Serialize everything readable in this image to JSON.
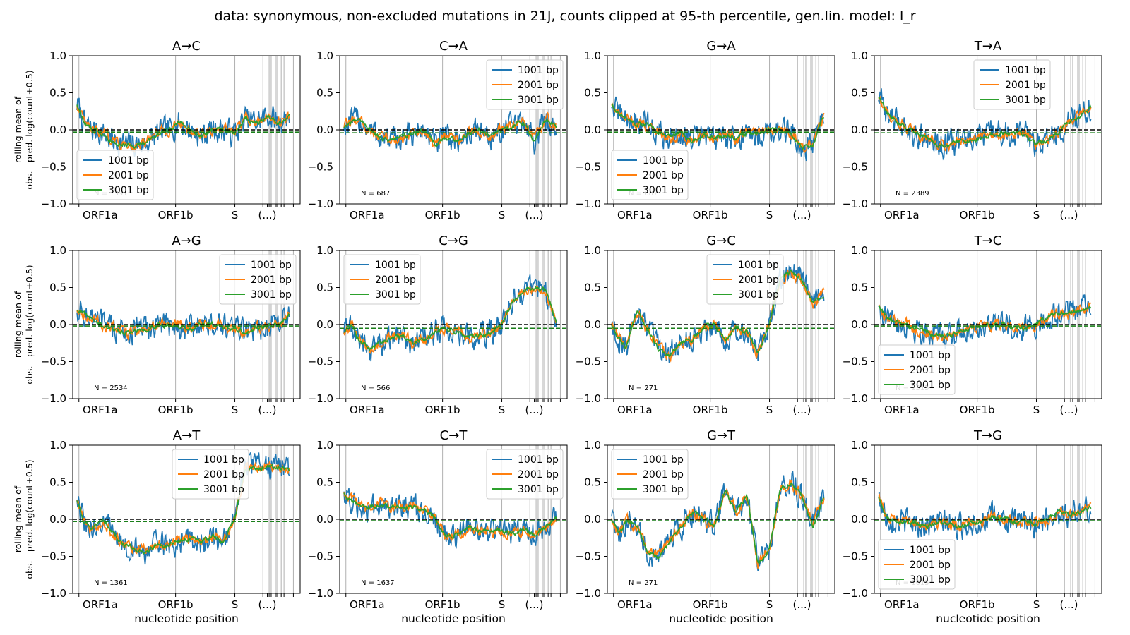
{
  "suptitle": "data: synonymous, non-excluded mutations in 21J, counts clipped at 95-th percentile, gen.lin. model: l_r",
  "axis": {
    "ylabel_line1": "rolling mean of",
    "ylabel_line2": "obs. - pred. log(count+0.5)",
    "xlabel": "nucleotide position",
    "yticks": [
      "1.0",
      "0.5",
      "0.0",
      "−0.5",
      "−1.0"
    ],
    "ylim": [
      -1.0,
      1.0
    ],
    "xlim": [
      0,
      29903
    ],
    "xtick_labels": [
      "ORF1a",
      "ORF1b",
      "S",
      "(...)"
    ],
    "xtick_positions": [
      266,
      13468,
      21563,
      26000
    ]
  },
  "gene_boundaries": [
    266,
    13468,
    21563,
    25393,
    26245,
    26523,
    27202,
    27394,
    27894,
    28274,
    29558
  ],
  "colors": {
    "w1001": "#1f77b4",
    "w2001": "#ff7f0e",
    "w3001": "#2ca02c",
    "zero_line": "#000000",
    "mean_line": "#1a7f1a",
    "gene_line": "#b0b0b0"
  },
  "chart_data": [
    {
      "type": "line",
      "title": "A→C",
      "n": "N = 1391",
      "legend": "lower-left",
      "mean_offset": -0.03,
      "series": [
        {
          "name": "1001 bp"
        },
        {
          "name": "2001 bp"
        },
        {
          "name": "3001 bp"
        }
      ],
      "x": [
        0,
        1000,
        2000,
        3500,
        5000,
        6500,
        8000,
        9500,
        11000,
        12500,
        14000,
        15500,
        17000,
        18500,
        20000,
        21500,
        23000,
        24500,
        26000,
        27500,
        29000
      ],
      "y": [
        0.35,
        0.08,
        0.0,
        -0.05,
        -0.15,
        -0.2,
        -0.2,
        -0.18,
        -0.05,
        0.0,
        0.1,
        0.0,
        -0.08,
        0.0,
        0.0,
        -0.05,
        0.15,
        0.1,
        0.2,
        0.1,
        0.18
      ]
    },
    {
      "type": "line",
      "title": "C→A",
      "n": "N = 687",
      "legend": "upper-right",
      "mean_offset": -0.04,
      "series": [
        {
          "name": "1001 bp"
        },
        {
          "name": "2001 bp"
        },
        {
          "name": "3001 bp"
        }
      ],
      "x": [
        0,
        1000,
        2000,
        3500,
        5000,
        6500,
        8000,
        9500,
        11000,
        12500,
        14000,
        15500,
        17000,
        18500,
        20000,
        21500,
        23000,
        24500,
        26000,
        27500,
        29000
      ],
      "y": [
        0.05,
        0.1,
        0.15,
        0.0,
        -0.1,
        -0.15,
        -0.1,
        -0.05,
        0.0,
        -0.2,
        -0.1,
        -0.15,
        -0.05,
        0.0,
        -0.1,
        0.0,
        0.05,
        0.1,
        -0.15,
        0.15,
        0.05
      ]
    },
    {
      "type": "line",
      "title": "G→A",
      "n": "N = 687",
      "legend": "lower-left",
      "mean_offset": -0.03,
      "series": [
        {
          "name": "1001 bp"
        },
        {
          "name": "2001 bp"
        },
        {
          "name": "3001 bp"
        }
      ],
      "x": [
        0,
        1000,
        2000,
        3500,
        5000,
        6500,
        8000,
        9500,
        11000,
        12500,
        14000,
        15500,
        17000,
        18500,
        20000,
        21500,
        23000,
        24500,
        26000,
        27500,
        29000
      ],
      "y": [
        0.35,
        0.2,
        0.15,
        0.1,
        0.05,
        -0.05,
        -0.1,
        -0.05,
        -0.15,
        -0.1,
        -0.1,
        -0.1,
        -0.1,
        -0.05,
        -0.05,
        0.0,
        0.0,
        -0.05,
        -0.25,
        -0.2,
        0.2
      ]
    },
    {
      "type": "line",
      "title": "T→A",
      "n": "N = 2389",
      "legend": "upper-center",
      "mean_offset": -0.04,
      "series": [
        {
          "name": "1001 bp"
        },
        {
          "name": "2001 bp"
        },
        {
          "name": "3001 bp"
        }
      ],
      "x": [
        0,
        1000,
        2000,
        3500,
        5000,
        6500,
        8000,
        9500,
        11000,
        12500,
        14000,
        15500,
        17000,
        18500,
        20000,
        21500,
        23000,
        24500,
        26000,
        27500,
        29000
      ],
      "y": [
        0.45,
        0.25,
        0.15,
        0.05,
        -0.05,
        -0.1,
        -0.2,
        -0.2,
        -0.15,
        -0.15,
        -0.1,
        -0.05,
        -0.05,
        -0.05,
        -0.05,
        -0.2,
        -0.15,
        -0.05,
        0.1,
        0.2,
        0.3
      ]
    },
    {
      "type": "line",
      "title": "A→G",
      "n": "N = 2534",
      "legend": "upper-right",
      "mean_offset": -0.02,
      "series": [
        {
          "name": "1001 bp"
        },
        {
          "name": "2001 bp"
        },
        {
          "name": "3001 bp"
        }
      ],
      "x": [
        0,
        1000,
        2000,
        3500,
        5000,
        6500,
        8000,
        9500,
        11000,
        12500,
        14000,
        15500,
        17000,
        18500,
        20000,
        21500,
        23000,
        24500,
        26000,
        27500,
        29000
      ],
      "y": [
        0.2,
        0.15,
        0.08,
        0.0,
        -0.05,
        -0.12,
        -0.08,
        -0.05,
        0.0,
        0.0,
        -0.02,
        -0.05,
        0.0,
        0.0,
        -0.05,
        -0.05,
        -0.1,
        -0.05,
        -0.03,
        0.0,
        0.15
      ]
    },
    {
      "type": "line",
      "title": "C→G",
      "n": "N = 566",
      "legend": "upper-left",
      "mean_offset": -0.05,
      "series": [
        {
          "name": "1001 bp"
        },
        {
          "name": "2001 bp"
        },
        {
          "name": "3001 bp"
        }
      ],
      "x": [
        0,
        1000,
        2000,
        3500,
        5000,
        6500,
        8000,
        9500,
        11000,
        12500,
        14000,
        15500,
        17000,
        18500,
        20000,
        21500,
        23000,
        24500,
        26000,
        27500,
        29000
      ],
      "y": [
        -0.1,
        0.0,
        -0.2,
        -0.35,
        -0.25,
        -0.2,
        -0.15,
        -0.25,
        -0.2,
        -0.1,
        -0.05,
        -0.1,
        -0.2,
        -0.15,
        -0.1,
        0.0,
        0.3,
        0.45,
        0.5,
        0.45,
        0.05
      ]
    },
    {
      "type": "line",
      "title": "G→C",
      "n": "N = 271",
      "legend": "upper-center",
      "mean_offset": -0.05,
      "series": [
        {
          "name": "1001 bp"
        },
        {
          "name": "2001 bp"
        },
        {
          "name": "3001 bp"
        }
      ],
      "x": [
        0,
        1000,
        2000,
        3500,
        5000,
        6500,
        8000,
        9500,
        11000,
        12500,
        14000,
        15500,
        17000,
        18500,
        20000,
        21500,
        23000,
        24500,
        26000,
        27500,
        29000
      ],
      "y": [
        0.0,
        -0.2,
        -0.3,
        0.2,
        -0.1,
        -0.35,
        -0.4,
        -0.25,
        -0.2,
        -0.05,
        0.0,
        -0.2,
        -0.05,
        -0.1,
        -0.4,
        0.0,
        0.6,
        0.7,
        0.6,
        0.3,
        0.4
      ]
    },
    {
      "type": "line",
      "title": "T→C",
      "n": "N = 2315",
      "legend": "lower-left",
      "mean_offset": -0.02,
      "series": [
        {
          "name": "1001 bp"
        },
        {
          "name": "2001 bp"
        },
        {
          "name": "3001 bp"
        }
      ],
      "x": [
        0,
        1000,
        2000,
        3500,
        5000,
        6500,
        8000,
        9500,
        11000,
        12500,
        14000,
        15500,
        17000,
        18500,
        20000,
        21500,
        23000,
        24500,
        26000,
        27500,
        29000
      ],
      "y": [
        0.25,
        0.1,
        0.05,
        0.0,
        -0.05,
        -0.1,
        -0.15,
        -0.15,
        -0.1,
        -0.05,
        0.0,
        0.0,
        0.0,
        -0.02,
        -0.05,
        0.0,
        0.1,
        0.15,
        0.15,
        0.2,
        0.25
      ]
    },
    {
      "type": "line",
      "title": "A→T",
      "n": "N = 1361",
      "legend": "upper-center",
      "mean_offset": -0.03,
      "series": [
        {
          "name": "1001 bp"
        },
        {
          "name": "2001 bp"
        },
        {
          "name": "3001 bp"
        }
      ],
      "x": [
        0,
        1000,
        2000,
        3500,
        5000,
        6500,
        8000,
        9500,
        11000,
        12500,
        14000,
        15500,
        17000,
        18500,
        20000,
        21500,
        23000,
        24500,
        26000,
        27500,
        29000
      ],
      "y": [
        0.25,
        -0.05,
        -0.15,
        0.0,
        -0.2,
        -0.35,
        -0.4,
        -0.45,
        -0.35,
        -0.35,
        -0.3,
        -0.25,
        -0.3,
        -0.25,
        -0.3,
        0.0,
        0.7,
        0.7,
        0.72,
        0.7,
        0.7
      ]
    },
    {
      "type": "line",
      "title": "C→T",
      "n": "N = 1637",
      "legend": "upper-right",
      "mean_offset": -0.02,
      "series": [
        {
          "name": "1001 bp"
        },
        {
          "name": "2001 bp"
        },
        {
          "name": "3001 bp"
        }
      ],
      "x": [
        0,
        1000,
        2000,
        3500,
        5000,
        6500,
        8000,
        9500,
        11000,
        12500,
        14000,
        15500,
        17000,
        18500,
        20000,
        21500,
        23000,
        24500,
        26000,
        27500,
        29000
      ],
      "y": [
        0.35,
        0.25,
        0.2,
        0.15,
        0.2,
        0.15,
        0.2,
        0.15,
        0.15,
        0.0,
        -0.25,
        -0.2,
        -0.1,
        -0.15,
        -0.15,
        -0.15,
        -0.2,
        -0.15,
        -0.2,
        -0.1,
        0.0
      ]
    },
    {
      "type": "line",
      "title": "G→T",
      "n": "N = 271",
      "legend": "upper-left",
      "mean_offset": -0.02,
      "series": [
        {
          "name": "1001 bp"
        },
        {
          "name": "2001 bp"
        },
        {
          "name": "3001 bp"
        }
      ],
      "x": [
        0,
        1000,
        2000,
        3500,
        5000,
        6500,
        8000,
        9500,
        11000,
        12500,
        14000,
        15500,
        17000,
        18500,
        20000,
        21500,
        23000,
        24500,
        26000,
        27500,
        29000
      ],
      "y": [
        0.0,
        -0.2,
        0.0,
        -0.1,
        -0.45,
        -0.5,
        -0.3,
        -0.1,
        0.1,
        0.0,
        -0.1,
        0.4,
        0.1,
        0.3,
        -0.6,
        -0.4,
        0.4,
        0.5,
        0.3,
        -0.1,
        0.3
      ]
    },
    {
      "type": "line",
      "title": "T→G",
      "n": "N = 1015",
      "legend": "lower-left",
      "mean_offset": -0.02,
      "series": [
        {
          "name": "1001 bp"
        },
        {
          "name": "2001 bp"
        },
        {
          "name": "3001 bp"
        }
      ],
      "x": [
        0,
        1000,
        2000,
        3500,
        5000,
        6500,
        8000,
        9500,
        11000,
        12500,
        14000,
        15500,
        17000,
        18500,
        20000,
        21500,
        23000,
        24500,
        26000,
        27500,
        29000
      ],
      "y": [
        0.3,
        0.05,
        0.0,
        -0.03,
        -0.05,
        -0.08,
        -0.05,
        -0.05,
        -0.1,
        -0.05,
        -0.05,
        0.05,
        0.0,
        -0.05,
        -0.05,
        -0.05,
        0.0,
        0.1,
        0.05,
        0.1,
        0.15
      ]
    }
  ]
}
